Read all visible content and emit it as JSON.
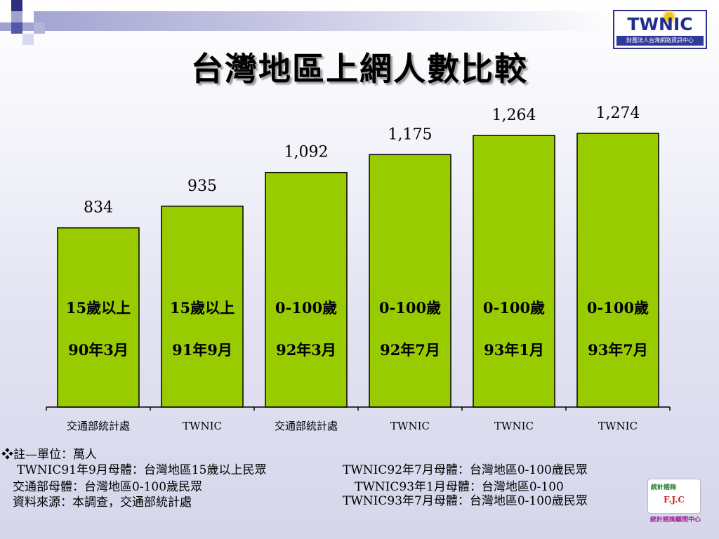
{
  "title": "台灣地區上網人數比較",
  "logo": {
    "main": "TWNIC",
    "sub": "財團法人台灣網路資訊中心"
  },
  "chart_data": {
    "type": "bar",
    "categories": [
      "交通部統計處",
      "TWNIC",
      "交通部統計處",
      "TWNIC",
      "TWNIC",
      "TWNIC"
    ],
    "values": [
      834,
      935,
      1092,
      1175,
      1264,
      1274
    ],
    "value_labels": [
      "834",
      "935",
      "1,092",
      "1,175",
      "1,264",
      "1,274"
    ],
    "inner_labels_line1": [
      "15歲以上",
      "15歲以上",
      "0-100歲",
      "0-100歲",
      "0-100歲",
      "0-100歲"
    ],
    "inner_labels_line2": [
      "90年3月",
      "91年9月",
      "92年3月",
      "92年7月",
      "93年1月",
      "93年7月"
    ],
    "bar_color": "#99cc00",
    "ylim": [
      0,
      1500
    ],
    "grid": false,
    "legend": "none"
  },
  "notes": {
    "line1": "❖註—單位：萬人",
    "line2_left": "TWNIC91年9月母體：台灣地區15歲以上民眾",
    "line2_right": "TWNIC92年7月母體：台灣地區0-100歲民眾",
    "line3_left": "交通部母體：台灣地區0-100歲民眾",
    "line3_right": "TWNIC93年1月母體：台灣地區0-100",
    "line4_left": "資料來源：本調查，交通部統計處",
    "line4_right": "TWNIC93年7月母體：台灣地區0-100歲民眾"
  },
  "fjc_logo": {
    "text": "統計諮詢",
    "letters": "F.J.C",
    "caption": "統計諮詢顧問中心"
  }
}
